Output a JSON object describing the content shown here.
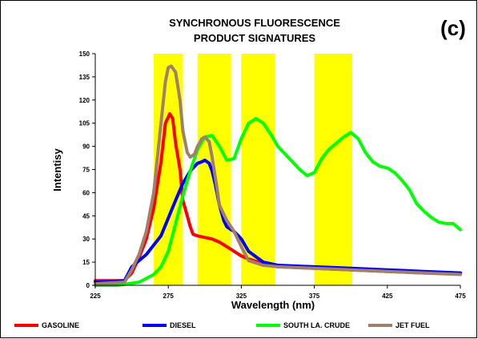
{
  "chart_data": {
    "type": "line",
    "title_lines": [
      "SYNCHRONOUS FLUORESCENCE",
      "PRODUCT SIGNATURES"
    ],
    "panel_label": "(c)",
    "xlabel": "Wavelength (nm)",
    "ylabel": "Intentisy",
    "xlim": [
      225,
      475
    ],
    "ylim": [
      0,
      150
    ],
    "xticks": [
      "225",
      "275",
      "325",
      "375",
      "425",
      "475"
    ],
    "xtick_values": [
      225,
      275,
      325,
      375,
      425,
      475
    ],
    "yticks": [
      "0",
      "15",
      "30",
      "45",
      "60",
      "75",
      "90",
      "105",
      "120",
      "135",
      "150"
    ],
    "ytick_values": [
      0,
      15,
      30,
      45,
      60,
      75,
      90,
      105,
      120,
      135,
      150
    ],
    "highlight_color": "#ffff00",
    "highlight_bands": [
      [
        265,
        285
      ],
      [
        295,
        318
      ],
      [
        325,
        348
      ],
      [
        375,
        401
      ]
    ],
    "legend_position": "bottom",
    "series": [
      {
        "name": "GASOLINE",
        "color": "#ff0000",
        "x": [
          225,
          245,
          250,
          255,
          260,
          265,
          270,
          273,
          276,
          278,
          280,
          283,
          285,
          288,
          290,
          292,
          295,
          300,
          305,
          310,
          315,
          320,
          325,
          330,
          340,
          350,
          375,
          400,
          425,
          450,
          475
        ],
        "y": [
          3,
          3,
          8,
          18,
          30,
          50,
          80,
          105,
          111,
          108,
          92,
          75,
          55,
          45,
          38,
          33,
          32,
          31,
          30,
          28,
          25,
          22,
          19,
          17,
          14,
          12,
          11,
          10,
          9,
          8,
          8
        ]
      },
      {
        "name": "DIESEL",
        "color": "#0000ff",
        "x": [
          225,
          245,
          250,
          260,
          270,
          280,
          285,
          290,
          295,
          298,
          300,
          303,
          305,
          307,
          310,
          313,
          315,
          318,
          320,
          325,
          330,
          340,
          350,
          375,
          400,
          425,
          450,
          475
        ],
        "y": [
          2,
          3,
          12,
          20,
          32,
          55,
          66,
          74,
          79,
          80,
          81,
          79,
          74,
          66,
          52,
          42,
          38,
          36,
          35,
          30,
          22,
          15,
          13,
          12,
          11,
          10,
          9,
          8
        ]
      },
      {
        "name": "SOUTH LA. CRUDE",
        "color": "#00ff00",
        "x": [
          225,
          240,
          255,
          265,
          270,
          275,
          280,
          285,
          290,
          295,
          300,
          305,
          310,
          315,
          320,
          325,
          330,
          335,
          340,
          345,
          350,
          355,
          360,
          365,
          370,
          375,
          380,
          385,
          390,
          395,
          400,
          405,
          410,
          415,
          420,
          425,
          430,
          435,
          440,
          445,
          450,
          455,
          460,
          465,
          470,
          475
        ],
        "y": [
          0,
          0,
          2,
          7,
          12,
          22,
          40,
          58,
          74,
          88,
          96,
          97,
          90,
          81,
          82,
          95,
          105,
          108,
          105,
          98,
          90,
          85,
          80,
          75,
          71,
          73,
          82,
          88,
          92,
          96,
          99,
          95,
          86,
          80,
          77,
          76,
          73,
          68,
          62,
          53,
          48,
          44,
          41,
          40,
          40,
          36
        ]
      },
      {
        "name": "JET FUEL",
        "color": "#a0806a",
        "x": [
          225,
          245,
          250,
          255,
          260,
          265,
          270,
          273,
          275,
          277,
          280,
          283,
          285,
          288,
          290,
          293,
          295,
          298,
          300,
          303,
          305,
          308,
          310,
          315,
          320,
          325,
          330,
          340,
          350,
          375,
          400,
          425,
          450,
          475
        ],
        "y": [
          1,
          2,
          10,
          20,
          35,
          60,
          105,
          132,
          141,
          142,
          138,
          120,
          100,
          86,
          83,
          85,
          90,
          95,
          96,
          93,
          83,
          65,
          52,
          42,
          35,
          25,
          16,
          13,
          12,
          11,
          10,
          9,
          8,
          7
        ]
      }
    ]
  }
}
